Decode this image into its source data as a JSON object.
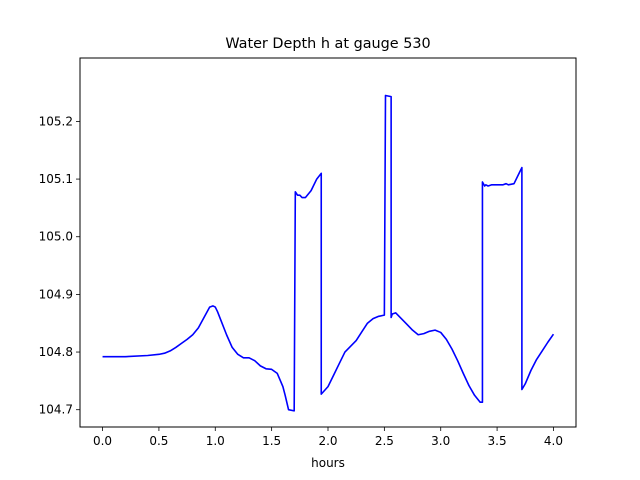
{
  "chart_data": {
    "type": "line",
    "title": "Water Depth h at gauge 530",
    "xlabel": "hours",
    "ylabel": "",
    "xlim": [
      -0.2,
      4.2
    ],
    "ylim": [
      104.67,
      105.31
    ],
    "xticks": [
      0.0,
      0.5,
      1.0,
      1.5,
      2.0,
      2.5,
      3.0,
      3.5,
      4.0
    ],
    "xtick_labels": [
      "0.0",
      "0.5",
      "1.0",
      "1.5",
      "2.0",
      "2.5",
      "3.0",
      "3.5",
      "4.0"
    ],
    "yticks": [
      104.7,
      104.8,
      104.9,
      105.0,
      105.1,
      105.2
    ],
    "ytick_labels": [
      "104.7",
      "104.8",
      "104.9",
      "105.0",
      "105.1",
      "105.2"
    ],
    "grid": false,
    "series": [
      {
        "color": "#0000ff",
        "x": [
          0.0,
          0.2,
          0.4,
          0.5,
          0.55,
          0.6,
          0.65,
          0.7,
          0.75,
          0.8,
          0.85,
          0.9,
          0.95,
          0.98,
          1.0,
          1.02,
          1.05,
          1.1,
          1.15,
          1.2,
          1.25,
          1.3,
          1.35,
          1.4,
          1.45,
          1.5,
          1.55,
          1.6,
          1.62,
          1.65,
          1.7,
          1.71,
          1.73,
          1.75,
          1.77,
          1.8,
          1.85,
          1.9,
          1.94,
          1.94,
          2.0,
          2.05,
          2.1,
          2.15,
          2.2,
          2.25,
          2.3,
          2.35,
          2.4,
          2.45,
          2.5,
          2.51,
          2.51,
          2.56,
          2.56,
          2.57,
          2.6,
          2.65,
          2.7,
          2.75,
          2.8,
          2.85,
          2.9,
          2.95,
          3.0,
          3.05,
          3.1,
          3.15,
          3.2,
          3.25,
          3.3,
          3.35,
          3.37,
          3.37,
          3.39,
          3.4,
          3.42,
          3.45,
          3.5,
          3.55,
          3.58,
          3.6,
          3.65,
          3.7,
          3.72,
          3.72,
          3.75,
          3.8,
          3.85,
          3.9,
          3.95,
          4.0
        ],
        "y": [
          104.792,
          104.792,
          104.794,
          104.796,
          104.798,
          104.802,
          104.808,
          104.815,
          104.822,
          104.83,
          104.842,
          104.86,
          104.878,
          104.88,
          104.878,
          104.87,
          104.855,
          104.83,
          104.808,
          104.796,
          104.79,
          104.79,
          104.785,
          104.776,
          104.771,
          104.77,
          104.763,
          104.74,
          104.725,
          104.7,
          104.698,
          105.078,
          105.072,
          105.072,
          105.068,
          105.068,
          105.08,
          105.1,
          105.11,
          104.727,
          104.74,
          104.76,
          104.78,
          104.8,
          104.81,
          104.82,
          104.835,
          104.85,
          104.858,
          104.862,
          104.864,
          105.245,
          105.245,
          105.243,
          104.86,
          104.866,
          104.868,
          104.858,
          104.848,
          104.838,
          104.83,
          104.832,
          104.836,
          104.838,
          104.834,
          104.822,
          104.805,
          104.785,
          104.763,
          104.742,
          104.725,
          104.713,
          104.713,
          105.095,
          105.088,
          105.09,
          105.088,
          105.09,
          105.09,
          105.09,
          105.092,
          105.09,
          105.092,
          105.112,
          105.12,
          104.735,
          104.745,
          104.768,
          104.787,
          104.802,
          104.817,
          104.831
        ]
      }
    ]
  }
}
